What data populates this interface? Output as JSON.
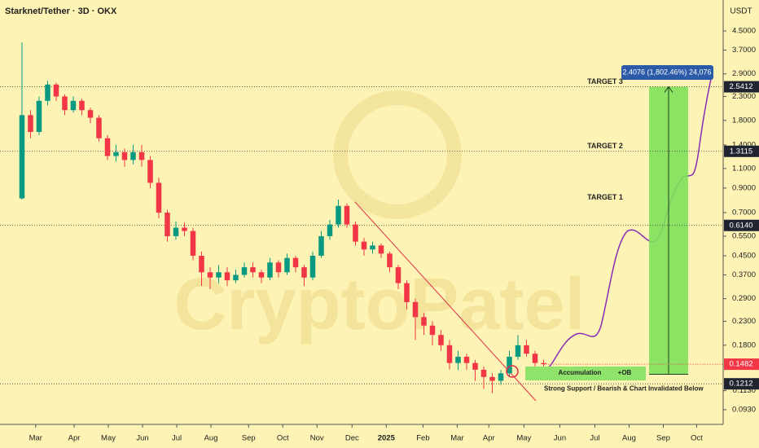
{
  "chart_data": {
    "type": "candlestick",
    "title": "Starknet/Tether · 3D · OKX",
    "currency": "USDT",
    "watermark": "CryptoPatel",
    "log_scale": true,
    "up_color": "#089981",
    "down_color": "#f23645",
    "open": [
      0.81,
      1.9,
      1.6,
      2.2,
      2.6,
      2.3,
      2.0,
      2.2,
      2.0,
      1.85,
      1.5,
      1.25,
      1.3,
      1.2,
      1.3,
      1.2,
      0.95,
      0.7,
      0.55,
      0.6,
      0.58,
      0.45,
      0.38,
      0.36,
      0.38,
      0.35,
      0.37,
      0.4,
      0.38,
      0.36,
      0.42,
      0.38,
      0.44,
      0.4,
      0.36,
      0.45,
      0.55,
      0.62,
      0.75,
      0.62,
      0.52,
      0.48,
      0.5,
      0.46,
      0.4,
      0.34,
      0.28,
      0.24,
      0.22,
      0.2,
      0.18,
      0.15,
      0.16,
      0.15,
      0.14,
      0.13,
      0.125,
      0.135,
      0.16,
      0.18,
      0.165,
      0.15
    ],
    "high": [
      4.0,
      2.0,
      2.3,
      2.7,
      2.65,
      2.35,
      2.3,
      2.25,
      2.05,
      1.9,
      1.55,
      1.4,
      1.35,
      1.4,
      1.4,
      1.25,
      1.0,
      0.72,
      0.64,
      0.63,
      0.6,
      0.47,
      0.4,
      0.41,
      0.4,
      0.39,
      0.42,
      0.42,
      0.39,
      0.44,
      0.43,
      0.46,
      0.45,
      0.41,
      0.47,
      0.58,
      0.65,
      0.8,
      0.77,
      0.64,
      0.54,
      0.52,
      0.51,
      0.47,
      0.41,
      0.35,
      0.29,
      0.25,
      0.23,
      0.21,
      0.19,
      0.17,
      0.165,
      0.155,
      0.145,
      0.135,
      0.14,
      0.17,
      0.2,
      0.19,
      0.17,
      0.155
    ],
    "low": [
      0.8,
      1.5,
      1.55,
      2.1,
      2.2,
      1.9,
      1.95,
      1.9,
      1.75,
      1.45,
      1.2,
      1.18,
      1.12,
      1.15,
      1.12,
      0.9,
      0.66,
      0.52,
      0.53,
      0.55,
      0.43,
      0.33,
      0.32,
      0.34,
      0.33,
      0.34,
      0.36,
      0.36,
      0.34,
      0.35,
      0.36,
      0.37,
      0.38,
      0.33,
      0.35,
      0.44,
      0.53,
      0.6,
      0.6,
      0.5,
      0.45,
      0.46,
      0.44,
      0.38,
      0.32,
      0.26,
      0.19,
      0.2,
      0.18,
      0.17,
      0.14,
      0.14,
      0.14,
      0.125,
      0.115,
      0.11,
      0.12,
      0.13,
      0.155,
      0.16,
      0.145,
      0.145
    ],
    "close": [
      1.9,
      1.6,
      2.2,
      2.6,
      2.3,
      2.0,
      2.2,
      2.0,
      1.85,
      1.5,
      1.25,
      1.3,
      1.2,
      1.3,
      1.2,
      0.95,
      0.7,
      0.55,
      0.6,
      0.58,
      0.45,
      0.38,
      0.36,
      0.38,
      0.35,
      0.37,
      0.4,
      0.38,
      0.36,
      0.42,
      0.38,
      0.44,
      0.4,
      0.36,
      0.45,
      0.55,
      0.62,
      0.75,
      0.62,
      0.52,
      0.48,
      0.5,
      0.46,
      0.4,
      0.34,
      0.28,
      0.24,
      0.22,
      0.2,
      0.18,
      0.15,
      0.16,
      0.15,
      0.14,
      0.13,
      0.125,
      0.135,
      0.16,
      0.18,
      0.165,
      0.15,
      0.1482
    ],
    "xlim": [
      -2.57,
      82.0
    ],
    "xticks": [
      {
        "value": 1.6,
        "label": "Mar"
      },
      {
        "value": 6.1,
        "label": "Apr"
      },
      {
        "value": 10.1,
        "label": "May"
      },
      {
        "value": 14.1,
        "label": "Jun"
      },
      {
        "value": 18.1,
        "label": "Jul"
      },
      {
        "value": 22.1,
        "label": "Aug"
      },
      {
        "value": 26.5,
        "label": "Sep"
      },
      {
        "value": 30.5,
        "label": "Oct"
      },
      {
        "value": 34.5,
        "label": "Nov"
      },
      {
        "value": 38.6,
        "label": "Dec"
      },
      {
        "value": 42.6,
        "label": "2025"
      },
      {
        "value": 46.9,
        "label": "Feb"
      },
      {
        "value": 50.9,
        "label": "Mar"
      },
      {
        "value": 54.6,
        "label": "Apr"
      },
      {
        "value": 58.7,
        "label": "May"
      },
      {
        "value": 62.9,
        "label": "Jun"
      },
      {
        "value": 67.0,
        "label": "Jul"
      },
      {
        "value": 71.0,
        "label": "Aug"
      },
      {
        "value": 75.0,
        "label": "Sep"
      },
      {
        "value": 78.9,
        "label": "Oct"
      }
    ],
    "ylim": [
      0.08,
      6.18
    ],
    "yticks": [
      {
        "value": 4.5,
        "label": "4.5000"
      },
      {
        "value": 3.7,
        "label": "3.7000"
      },
      {
        "value": 2.9,
        "label": "2.9000"
      },
      {
        "value": 2.3,
        "label": "2.3000"
      },
      {
        "value": 1.8,
        "label": "1.8000"
      },
      {
        "value": 1.4,
        "label": "1.4000"
      },
      {
        "value": 1.1,
        "label": "1.1000"
      },
      {
        "value": 0.9,
        "label": "0.9000"
      },
      {
        "value": 0.7,
        "label": "0.7000"
      },
      {
        "value": 0.55,
        "label": "0.5500"
      },
      {
        "value": 0.45,
        "label": "0.4500"
      },
      {
        "value": 0.37,
        "label": "0.3700"
      },
      {
        "value": 0.29,
        "label": "0.2900"
      },
      {
        "value": 0.23,
        "label": "0.2300"
      },
      {
        "value": 0.18,
        "label": "0.1800"
      },
      {
        "value": 0.113,
        "label": "0.1130"
      },
      {
        "value": 0.093,
        "label": "0.0930"
      }
    ],
    "levels": [
      {
        "value": 2.5412,
        "name": "TARGET 3"
      },
      {
        "value": 1.3115,
        "name": "TARGET 2"
      },
      {
        "value": {
          "value": 0.614,
          "label": "0.6140"
        },
        "name": "TARGET 1"
      },
      {
        "value": 0.1212,
        "name": "Strong Support / Bearish & Chart Invalidated Below"
      }
    ],
    "last_price": 0.1482,
    "measure": {
      "from": 0.1336,
      "to": 2.5412,
      "label": "2.4076 (1,802.46%) 24,076"
    },
    "zone": {
      "label": "Accumulation",
      "tag": "+OB"
    }
  }
}
